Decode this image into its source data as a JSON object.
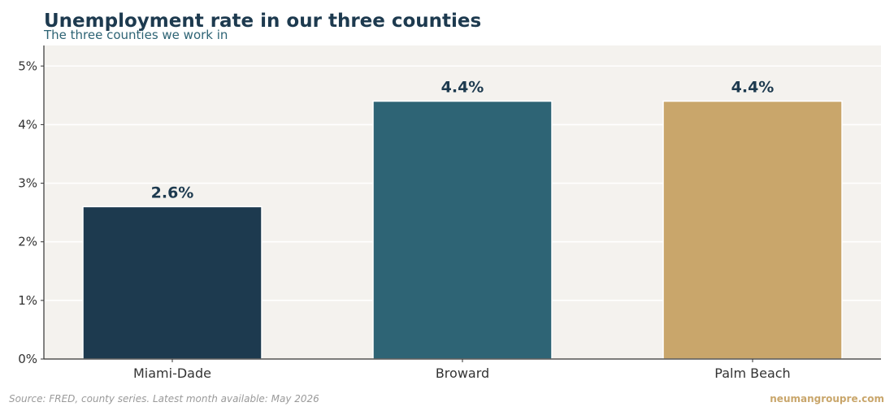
{
  "chart_data": {
    "type": "bar",
    "title": "Unemployment rate in our three counties",
    "subtitle": "The three counties we work in",
    "categories": [
      "Miami-Dade",
      "Broward",
      "Palm Beach"
    ],
    "values": [
      2.6,
      4.4,
      4.4
    ],
    "value_labels": [
      "2.6%",
      "4.4%",
      "4.4%"
    ],
    "colors": [
      "#1d3a4f",
      "#2e6475",
      "#c9a66b"
    ],
    "ylim": [
      0,
      5.35
    ],
    "yticks": [
      0,
      1,
      2,
      3,
      4,
      5
    ],
    "ytick_labels": [
      "0%",
      "1%",
      "2%",
      "3%",
      "4%",
      "5%"
    ],
    "grid": true,
    "plot_background": "#f4f2ee"
  },
  "footer": {
    "source": "Source: FRED, county series. Latest month available: May 2026",
    "brand": "neumangroupre.com"
  }
}
